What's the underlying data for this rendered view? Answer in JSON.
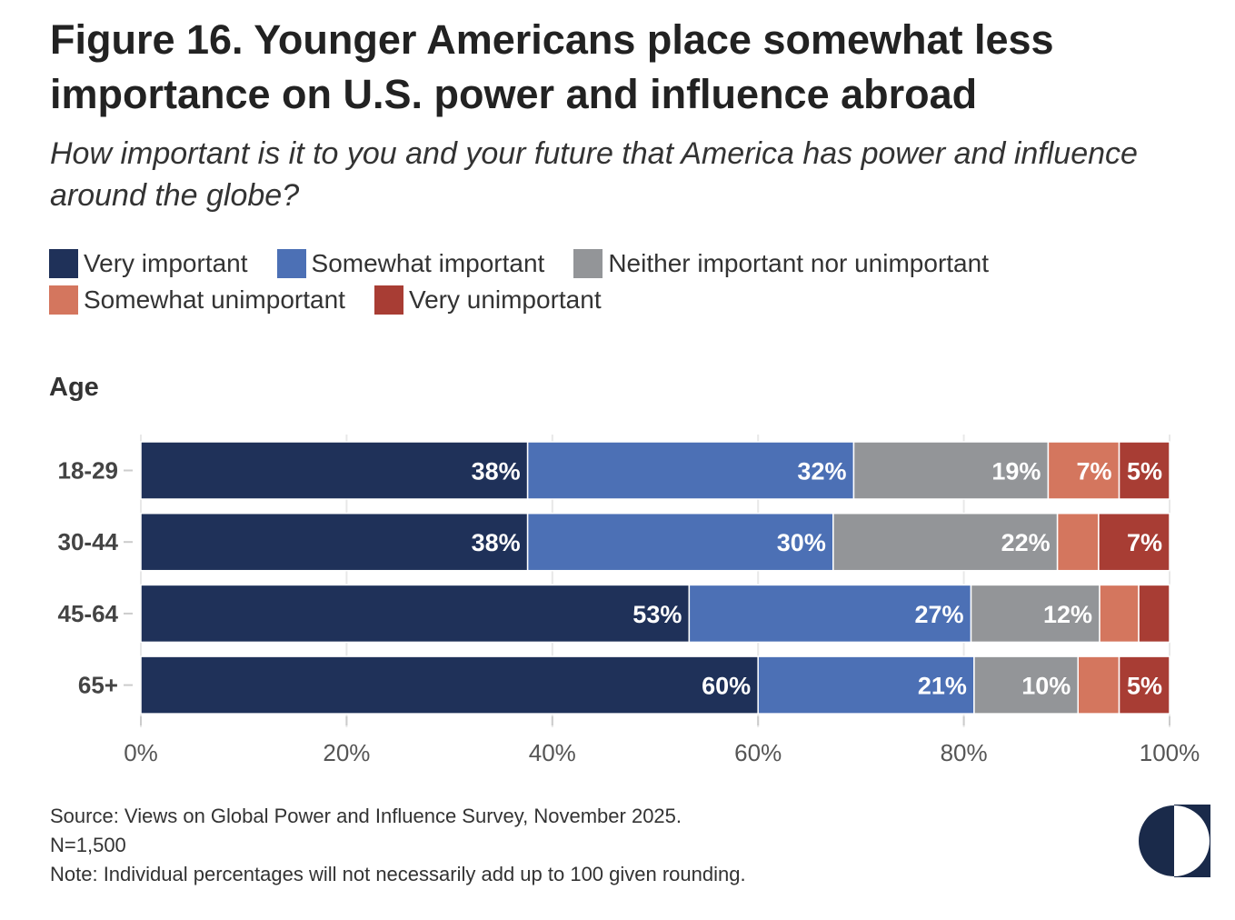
{
  "title": "Figure 16. Younger Americans place somewhat less importance on U.S. power and influence abroad",
  "subtitle": "How important is it to you and your future that America has power and influence around the globe?",
  "facet_label": "Age",
  "footer": {
    "source": "Source: Views on Global Power and Influence Survey, November 2025.",
    "n": "N=1,500",
    "note": "Note: Individual percentages will not necessarily add up to 100 given rounding."
  },
  "chart_data": {
    "type": "bar",
    "orientation": "horizontal",
    "stacked": true,
    "categories": [
      "18-29",
      "30-44",
      "45-64",
      "65+"
    ],
    "series": [
      {
        "name": "Very important",
        "color": "#1f3159",
        "values": [
          37.6,
          37.6,
          53.3,
          60.0
        ],
        "labels": [
          "38%",
          "38%",
          "53%",
          "60%"
        ]
      },
      {
        "name": "Somewhat important",
        "color": "#4c70b5",
        "values": [
          31.7,
          29.7,
          27.4,
          21.0
        ],
        "labels": [
          "32%",
          "30%",
          "27%",
          "21%"
        ]
      },
      {
        "name": "Neither important nor unimportant",
        "color": "#939598",
        "values": [
          18.9,
          21.8,
          12.5,
          10.1
        ],
        "labels": [
          "19%",
          "22%",
          "12%",
          "10%"
        ]
      },
      {
        "name": "Somewhat unimportant",
        "color": "#d4765e",
        "values": [
          6.9,
          4.0,
          3.8,
          4.0
        ],
        "labels": [
          "7%",
          null,
          null,
          null
        ]
      },
      {
        "name": "Very unimportant",
        "color": "#a83d34",
        "values": [
          4.9,
          6.9,
          3.0,
          4.9
        ],
        "labels": [
          "5%",
          "7%",
          null,
          "5%"
        ]
      }
    ],
    "xlim": [
      0,
      100
    ],
    "xticks": [
      "0%",
      "20%",
      "40%",
      "60%",
      "80%",
      "100%"
    ],
    "xtick_values": [
      0,
      20,
      40,
      60,
      80,
      100
    ],
    "grid": true,
    "legend_placement": "top"
  }
}
